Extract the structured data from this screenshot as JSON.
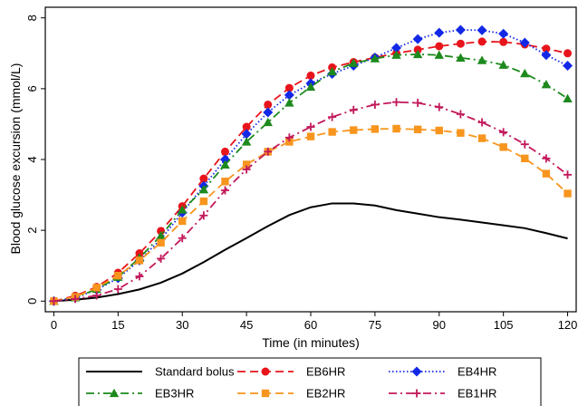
{
  "chart_data": {
    "type": "line",
    "title": "",
    "xlabel": "Time (in minutes)",
    "ylabel": "Blood glucose excursion (mmol/L)",
    "xlim": [
      -2,
      122
    ],
    "ylim": [
      -0.3,
      8.3
    ],
    "x_ticks": [
      0,
      15,
      30,
      45,
      60,
      75,
      90,
      105,
      120
    ],
    "y_ticks": [
      0,
      2,
      4,
      6,
      8
    ],
    "grid": false,
    "legend_position": "bottom",
    "x": [
      0,
      5,
      10,
      15,
      20,
      25,
      30,
      35,
      40,
      45,
      50,
      55,
      60,
      65,
      70,
      75,
      80,
      85,
      90,
      95,
      100,
      105,
      110,
      115,
      120
    ],
    "series": [
      {
        "name": "Standard bolus",
        "color": "#000000",
        "line_style": "solid",
        "marker": "none",
        "values": [
          0.0,
          0.04,
          0.1,
          0.2,
          0.33,
          0.52,
          0.78,
          1.1,
          1.45,
          1.78,
          2.12,
          2.43,
          2.65,
          2.76,
          2.76,
          2.7,
          2.57,
          2.47,
          2.37,
          2.3,
          2.22,
          2.14,
          2.06,
          1.92,
          1.77
        ]
      },
      {
        "name": "EB6HR",
        "color": "#e8141b",
        "line_style": "dashed",
        "marker": "circle",
        "values": [
          0.0,
          0.15,
          0.4,
          0.8,
          1.35,
          1.98,
          2.68,
          3.46,
          4.22,
          4.92,
          5.55,
          6.02,
          6.37,
          6.6,
          6.75,
          6.88,
          7.0,
          7.1,
          7.2,
          7.27,
          7.33,
          7.32,
          7.25,
          7.13,
          7.0
        ]
      },
      {
        "name": "EB4HR",
        "color": "#1228e6",
        "line_style": "dotted",
        "marker": "diamond",
        "values": [
          0.0,
          0.1,
          0.32,
          0.65,
          1.15,
          1.75,
          2.5,
          3.25,
          4.0,
          4.72,
          5.33,
          5.82,
          6.15,
          6.42,
          6.65,
          6.88,
          7.15,
          7.4,
          7.58,
          7.66,
          7.65,
          7.55,
          7.3,
          6.95,
          6.65
        ]
      },
      {
        "name": "EB3HR",
        "color": "#1c8a1c",
        "line_style": "dashdot",
        "marker": "triangle",
        "values": [
          0.0,
          0.1,
          0.34,
          0.68,
          1.22,
          1.85,
          2.58,
          3.15,
          3.85,
          4.5,
          5.05,
          5.6,
          6.05,
          6.48,
          6.72,
          6.85,
          6.95,
          6.97,
          6.95,
          6.87,
          6.8,
          6.67,
          6.43,
          6.12,
          5.72
        ]
      },
      {
        "name": "EB2HR",
        "color": "#f7951e",
        "line_style": "dashed",
        "marker": "square",
        "values": [
          0.0,
          0.12,
          0.38,
          0.72,
          1.15,
          1.65,
          2.26,
          2.82,
          3.38,
          3.86,
          4.22,
          4.5,
          4.65,
          4.78,
          4.83,
          4.86,
          4.87,
          4.85,
          4.82,
          4.75,
          4.6,
          4.35,
          4.03,
          3.6,
          3.04
        ]
      },
      {
        "name": "EB1HR",
        "color": "#c2185b",
        "line_style": "dashdot",
        "marker": "plus",
        "values": [
          0.0,
          0.06,
          0.16,
          0.34,
          0.7,
          1.2,
          1.78,
          2.42,
          3.13,
          3.72,
          4.22,
          4.62,
          4.92,
          5.2,
          5.4,
          5.55,
          5.62,
          5.6,
          5.48,
          5.28,
          5.05,
          4.77,
          4.43,
          4.03,
          3.57
        ]
      }
    ]
  }
}
